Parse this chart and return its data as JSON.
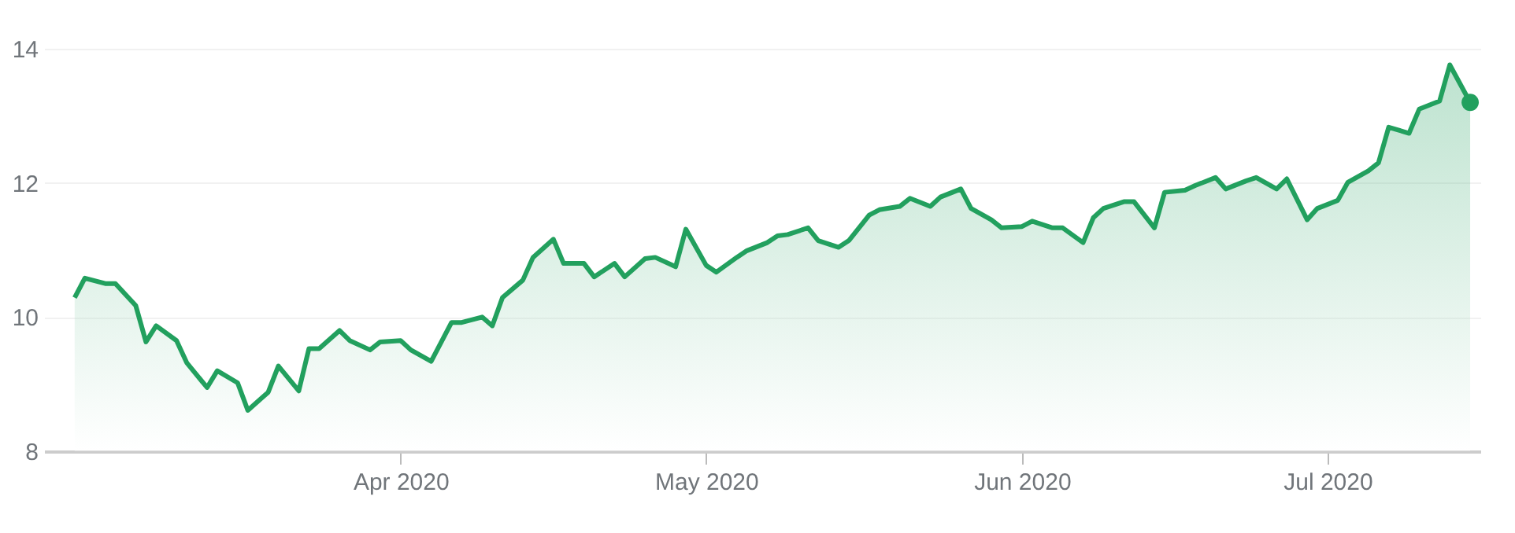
{
  "chart_data": {
    "type": "area",
    "x": [
      "2020-02-29",
      "2020-03-01",
      "2020-03-03",
      "2020-03-04",
      "2020-03-06",
      "2020-03-07",
      "2020-03-08",
      "2020-03-10",
      "2020-03-11",
      "2020-03-13",
      "2020-03-14",
      "2020-03-16",
      "2020-03-17",
      "2020-03-19",
      "2020-03-20",
      "2020-03-22",
      "2020-03-23",
      "2020-03-24",
      "2020-03-26",
      "2020-03-27",
      "2020-03-29",
      "2020-03-30",
      "2020-04-01",
      "2020-04-02",
      "2020-04-04",
      "2020-04-06",
      "2020-04-07",
      "2020-04-09",
      "2020-04-10",
      "2020-04-11",
      "2020-04-13",
      "2020-04-14",
      "2020-04-16",
      "2020-04-17",
      "2020-04-19",
      "2020-04-20",
      "2020-04-22",
      "2020-04-23",
      "2020-04-25",
      "2020-04-26",
      "2020-04-28",
      "2020-04-29",
      "2020-05-01",
      "2020-05-02",
      "2020-05-04",
      "2020-05-05",
      "2020-05-07",
      "2020-05-08",
      "2020-05-09",
      "2020-05-11",
      "2020-05-12",
      "2020-05-14",
      "2020-05-15",
      "2020-05-17",
      "2020-05-18",
      "2020-05-20",
      "2020-05-21",
      "2020-05-23",
      "2020-05-24",
      "2020-05-26",
      "2020-05-27",
      "2020-05-29",
      "2020-05-30",
      "2020-06-01",
      "2020-06-02",
      "2020-06-04",
      "2020-06-05",
      "2020-06-07",
      "2020-06-08",
      "2020-06-09",
      "2020-06-11",
      "2020-06-12",
      "2020-06-14",
      "2020-06-15",
      "2020-06-17",
      "2020-06-18",
      "2020-06-20",
      "2020-06-21",
      "2020-06-23",
      "2020-06-24",
      "2020-06-26",
      "2020-06-27",
      "2020-06-29",
      "2020-06-30",
      "2020-07-02",
      "2020-07-03",
      "2020-07-05",
      "2020-07-06",
      "2020-07-07",
      "2020-07-09",
      "2020-07-10",
      "2020-07-12",
      "2020-07-13",
      "2020-07-15"
    ],
    "series": [
      {
        "color": "#22a05e",
        "values": [
          10.29,
          10.58,
          10.5,
          10.5,
          10.17,
          9.63,
          9.87,
          9.65,
          9.32,
          8.95,
          9.2,
          9.02,
          8.61,
          8.88,
          9.27,
          8.9,
          9.53,
          9.53,
          9.8,
          9.65,
          9.51,
          9.63,
          9.65,
          9.51,
          9.34,
          9.92,
          9.92,
          10.0,
          9.87,
          10.29,
          10.55,
          10.89,
          11.16,
          10.8,
          10.8,
          10.6,
          10.8,
          10.6,
          10.87,
          10.89,
          10.75,
          11.31,
          10.77,
          10.67,
          10.89,
          10.99,
          11.11,
          11.21,
          11.23,
          11.33,
          11.14,
          11.04,
          11.14,
          11.52,
          11.6,
          11.65,
          11.77,
          11.65,
          11.79,
          11.91,
          11.62,
          11.45,
          11.33,
          11.35,
          11.43,
          11.33,
          11.33,
          11.11,
          11.48,
          11.62,
          11.72,
          11.72,
          11.33,
          11.86,
          11.89,
          11.96,
          12.08,
          11.91,
          12.03,
          12.08,
          11.91,
          12.06,
          11.45,
          11.62,
          11.74,
          12.01,
          12.18,
          12.3,
          12.83,
          12.74,
          13.1,
          13.22,
          13.76,
          13.2
        ]
      }
    ],
    "xlim": [
      "2020-02-26",
      "2020-07-16"
    ],
    "xticks": [
      {
        "value": "2020-04-01",
        "label": "Apr 2020"
      },
      {
        "value": "2020-05-01",
        "label": "May 2020"
      },
      {
        "value": "2020-06-01",
        "label": "Jun 2020"
      },
      {
        "value": "2020-07-01",
        "label": "Jul 2020"
      }
    ],
    "ylim": [
      8,
      14
    ],
    "yticks": [
      8,
      10,
      12,
      14
    ],
    "grid": "y",
    "line_style": "solid"
  }
}
